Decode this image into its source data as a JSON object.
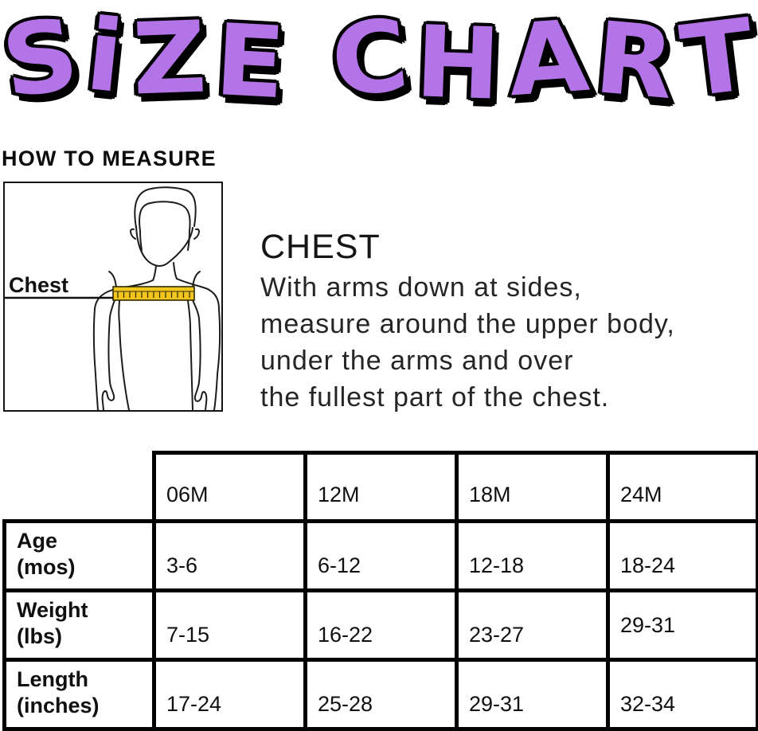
{
  "title": "SiZE CHART",
  "how_to_measure": {
    "heading": "HOW TO MEASURE"
  },
  "measure_figure": {
    "label": "Chest"
  },
  "chest_section": {
    "heading": "CHEST",
    "lines": [
      "With arms down at sides,",
      "measure around the upper body,",
      "under the arms and over",
      "the fullest part of the chest."
    ]
  },
  "size_table": {
    "columns": [
      "06M",
      "12M",
      "18M",
      "24M"
    ],
    "rows": [
      {
        "label_line1": "Age",
        "label_line2": "(mos)",
        "values": [
          "3-6",
          "6-12",
          "12-18",
          "18-24"
        ]
      },
      {
        "label_line1": "Weight",
        "label_line2": "(lbs)",
        "values": [
          "7-15",
          "16-22",
          "23-27",
          "29-31"
        ]
      },
      {
        "label_line1": "Length",
        "label_line2": "(inches)",
        "values": [
          "17-24",
          "25-28",
          "29-31",
          "32-34"
        ]
      }
    ]
  },
  "colors": {
    "title_fill": "#B274E6",
    "title_outline": "#000000",
    "tape_yellow": "#F2C51F",
    "text": "#111111"
  }
}
